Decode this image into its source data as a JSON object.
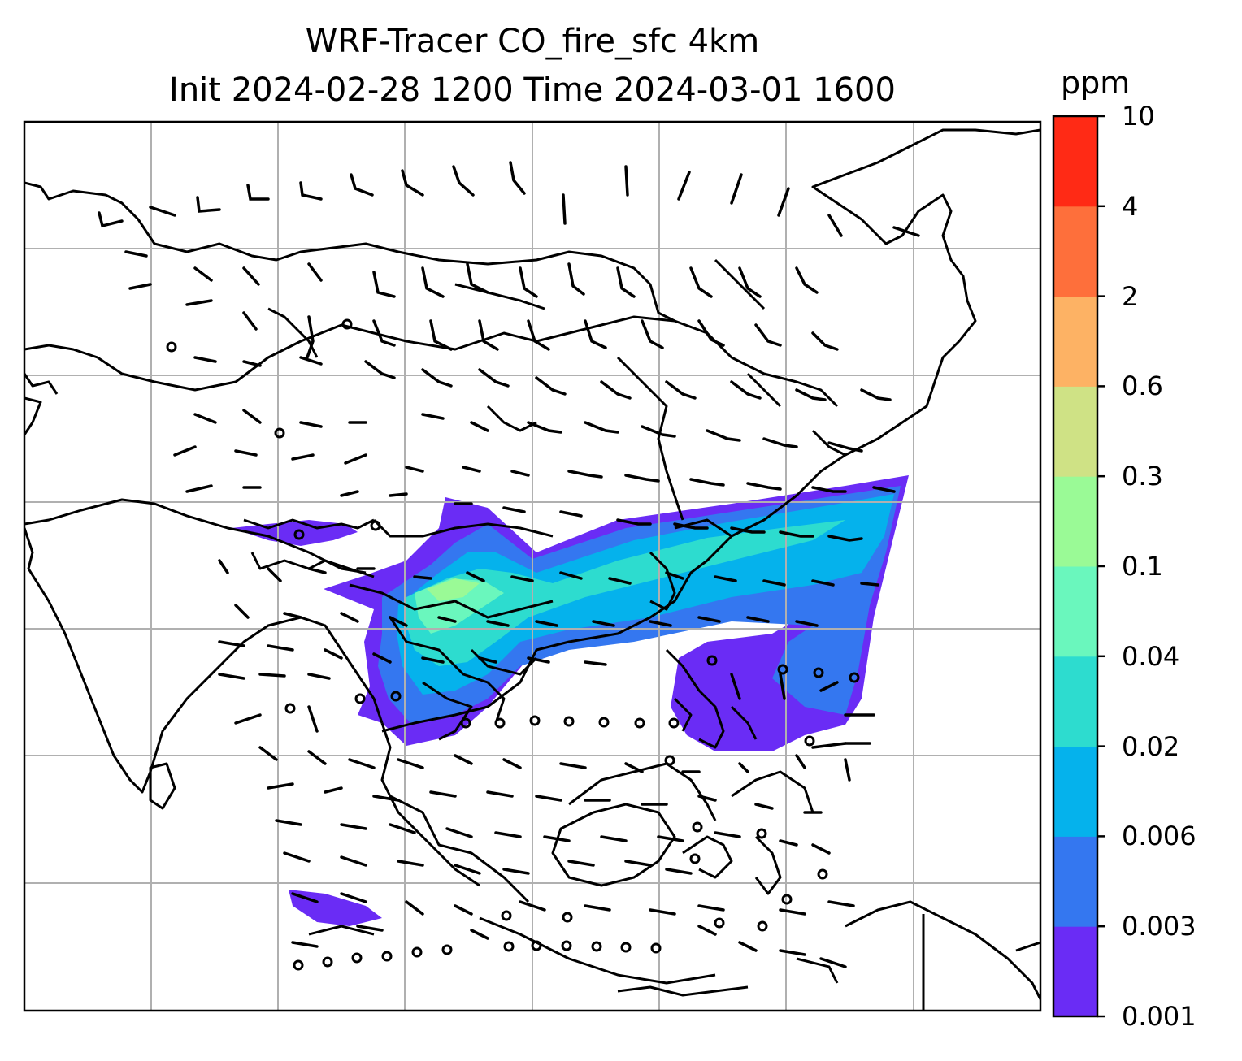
{
  "title": {
    "line1": "WRF-Tracer CO_fire_sfc 4km",
    "line2": "Init 2024-02-28 1200 Time 2024-03-01 1600"
  },
  "colorbar": {
    "unit": "ppm",
    "levels": [
      {
        "label": "0.001",
        "color": "#6a2cf5"
      },
      {
        "label": "0.003",
        "color": "#3477f0"
      },
      {
        "label": "0.006",
        "color": "#05b2ec"
      },
      {
        "label": "0.02",
        "color": "#2ddccf"
      },
      {
        "label": "0.04",
        "color": "#6af7bd"
      },
      {
        "label": "0.1",
        "color": "#9afa96"
      },
      {
        "label": "0.3",
        "color": "#cfe285"
      },
      {
        "label": "0.6",
        "color": "#fdb264"
      },
      {
        "label": "2",
        "color": "#fe6f3b"
      },
      {
        "label": "4",
        "color": "#ff2a15"
      },
      {
        "label": "10",
        "color": null
      }
    ]
  },
  "map": {
    "field": "CO_fire_sfc",
    "features": [
      "coastlines",
      "country-borders",
      "gridlines",
      "wind-barbs",
      "tracer-plume"
    ],
    "colors": {
      "land_lines": "#000000",
      "grid": "#b0b0b0",
      "frame": "#000000"
    }
  }
}
